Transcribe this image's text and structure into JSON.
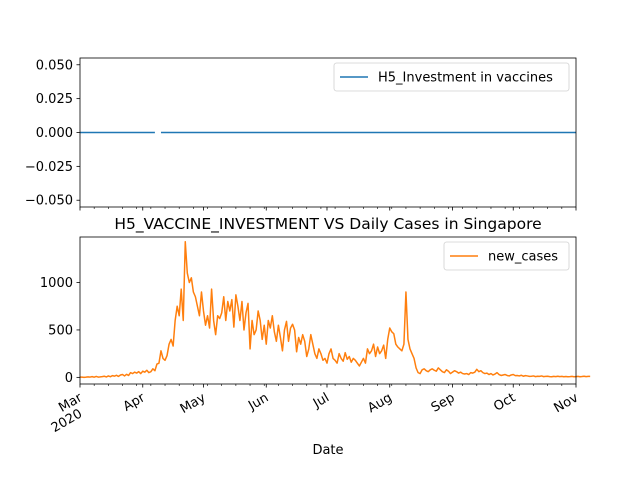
{
  "chart_data": [
    {
      "type": "line",
      "title": "",
      "xlabel": "",
      "ylabel": "",
      "ylim": [
        -0.055,
        0.055
      ],
      "yticks": [
        "0.050",
        "0.025",
        "0.000",
        "−0.025",
        "−0.050"
      ],
      "ytick_values": [
        0.05,
        0.025,
        0.0,
        -0.025,
        -0.05
      ],
      "legend_position": "top-right",
      "color": "#1f77b4",
      "series": [
        {
          "name": "H5_Investment in vaccines",
          "segments": [
            {
              "start": "2020-03-01",
              "end": "2020-04-07",
              "value": 0
            },
            {
              "start": "2020-04-10",
              "end": "2020-11-01",
              "value": 0
            }
          ]
        }
      ]
    },
    {
      "type": "line",
      "title": "H5_VACCINE_INVESTMENT VS Daily Cases in Singapore",
      "xlabel": "Date",
      "ylabel": "",
      "xlim": [
        "2020-03-01",
        "2020-11-01"
      ],
      "ylim": [
        -70,
        1480
      ],
      "yticks": [
        "0",
        "500",
        "1000"
      ],
      "ytick_values": [
        0,
        500,
        1000
      ],
      "xticks": [
        {
          "date": "2020-03-01",
          "label": "Mar",
          "sublabel": "2020"
        },
        {
          "date": "2020-04-01",
          "label": "Apr"
        },
        {
          "date": "2020-05-01",
          "label": "May"
        },
        {
          "date": "2020-06-01",
          "label": "Jun"
        },
        {
          "date": "2020-07-01",
          "label": "Jul"
        },
        {
          "date": "2020-08-01",
          "label": "Aug"
        },
        {
          "date": "2020-09-01",
          "label": "Sep"
        },
        {
          "date": "2020-10-01",
          "label": "Oct"
        },
        {
          "date": "2020-11-01",
          "label": "Nov"
        }
      ],
      "legend_position": "top-right",
      "color": "#ff7f0e",
      "series": [
        {
          "name": "new_cases",
          "x_start": "2020-03-01",
          "x_step_days": 1,
          "values": [
            2,
            3,
            0,
            2,
            5,
            3,
            8,
            2,
            10,
            3,
            5,
            8,
            12,
            4,
            15,
            7,
            18,
            13,
            22,
            10,
            25,
            30,
            15,
            32,
            20,
            50,
            40,
            55,
            45,
            60,
            40,
            65,
            55,
            75,
            50,
            60,
            90,
            70,
            140,
            150,
            280,
            200,
            180,
            230,
            350,
            400,
            330,
            600,
            750,
            650,
            930,
            600,
            1430,
            1100,
            1000,
            1050,
            900,
            850,
            750,
            650,
            900,
            700,
            550,
            650,
            520,
            930,
            600,
            450,
            650,
            620,
            680,
            850,
            600,
            800,
            700,
            820,
            530,
            870,
            750,
            600,
            800,
            500,
            680,
            780,
            300,
            600,
            450,
            500,
            700,
            600,
            400,
            550,
            350,
            600,
            520,
            650,
            480,
            380,
            550,
            420,
            280,
            500,
            590,
            380,
            520,
            560,
            500,
            270,
            420,
            350,
            450,
            380,
            220,
            300,
            450,
            350,
            250,
            200,
            300,
            250,
            180,
            200,
            150,
            250,
            300,
            200,
            180,
            150,
            250,
            200,
            170,
            260,
            190,
            220,
            160,
            200,
            180,
            150,
            120,
            160,
            200,
            150,
            300,
            250,
            280,
            350,
            220,
            320,
            250,
            280,
            340,
            200,
            400,
            520,
            480,
            460,
            350,
            320,
            300,
            280,
            350,
            900,
            400,
            300,
            250,
            200,
            100,
            50,
            40,
            80,
            90,
            70,
            60,
            80,
            90,
            75,
            65,
            100,
            80,
            60,
            50,
            80,
            65,
            40,
            55,
            70,
            60,
            45,
            55,
            40,
            35,
            40,
            30,
            50,
            45,
            55,
            85,
            60,
            70,
            50,
            40,
            45,
            30,
            40,
            25,
            35,
            50,
            30,
            20,
            25,
            30,
            20,
            15,
            25,
            30,
            18,
            20,
            15,
            22,
            12,
            18,
            15,
            10,
            12,
            15,
            8,
            12,
            10,
            15,
            8,
            10,
            12,
            8,
            6,
            10,
            8,
            12,
            8,
            10,
            6,
            9,
            7,
            8,
            10,
            6,
            8,
            10,
            7,
            9,
            12,
            8,
            10,
            10
          ]
        }
      ]
    }
  ]
}
